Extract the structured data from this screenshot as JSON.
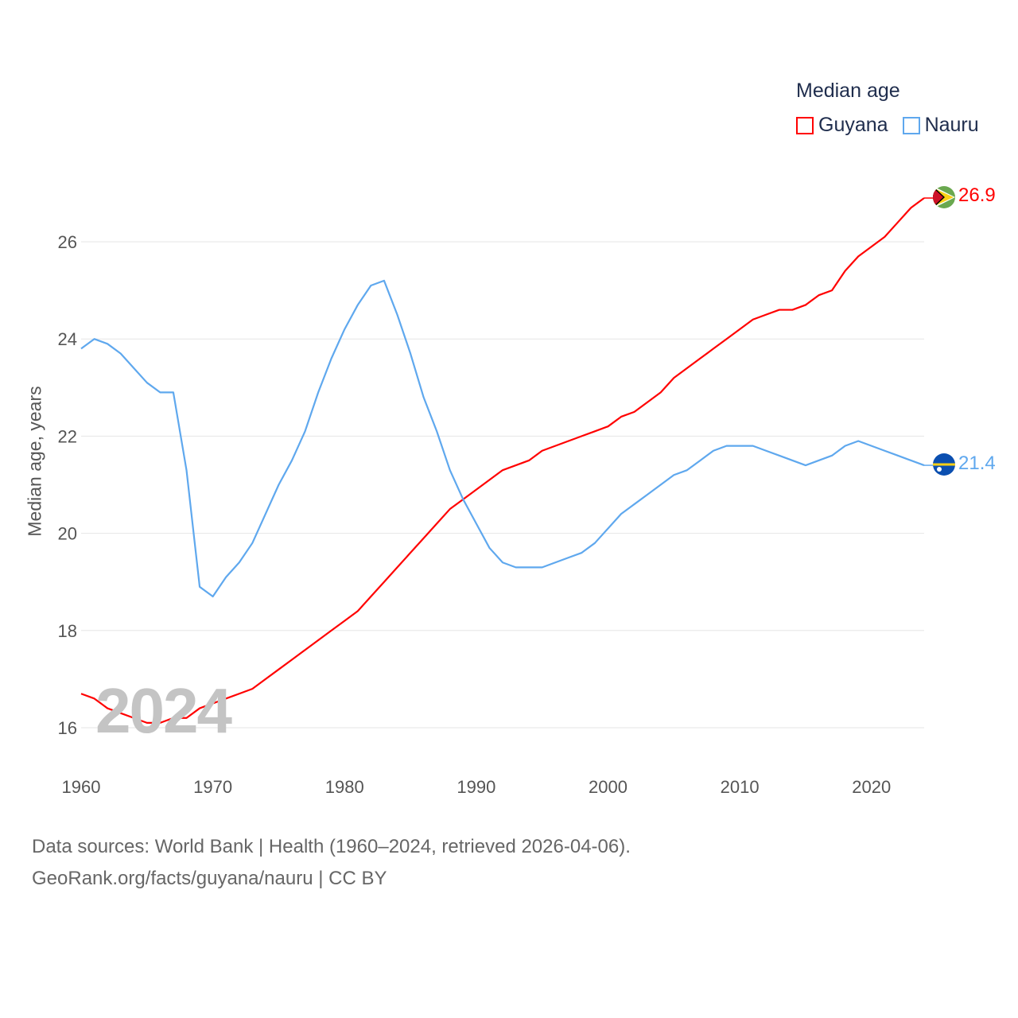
{
  "chart_data": {
    "type": "line",
    "title": "Median age",
    "ylabel": "Median age, years",
    "xlabel": "",
    "xlim": [
      1960,
      2024
    ],
    "ylim": [
      15.2,
      27.5
    ],
    "x_ticks": [
      1960,
      1970,
      1980,
      1990,
      2000,
      2010,
      2020
    ],
    "y_ticks": [
      16,
      18,
      20,
      22,
      24,
      26
    ],
    "grid": true,
    "legend_position": "top-right",
    "current_year": "2024",
    "x": [
      1960,
      1961,
      1962,
      1963,
      1964,
      1965,
      1966,
      1967,
      1968,
      1969,
      1970,
      1971,
      1972,
      1973,
      1974,
      1975,
      1976,
      1977,
      1978,
      1979,
      1980,
      1981,
      1982,
      1983,
      1984,
      1985,
      1986,
      1987,
      1988,
      1989,
      1990,
      1991,
      1992,
      1993,
      1994,
      1995,
      1996,
      1997,
      1998,
      1999,
      2000,
      2001,
      2002,
      2003,
      2004,
      2005,
      2006,
      2007,
      2008,
      2009,
      2010,
      2011,
      2012,
      2013,
      2014,
      2015,
      2016,
      2017,
      2018,
      2019,
      2020,
      2021,
      2022,
      2023,
      2024
    ],
    "series": [
      {
        "name": "Guyana",
        "color": "#ff0000",
        "end_label": "26.9",
        "values": [
          16.7,
          16.6,
          16.4,
          16.3,
          16.2,
          16.1,
          16.1,
          16.2,
          16.2,
          16.4,
          16.5,
          16.6,
          16.7,
          16.8,
          17.0,
          17.2,
          17.4,
          17.6,
          17.8,
          18.0,
          18.2,
          18.4,
          18.7,
          19.0,
          19.3,
          19.6,
          19.9,
          20.2,
          20.5,
          20.7,
          20.9,
          21.1,
          21.3,
          21.4,
          21.5,
          21.7,
          21.8,
          21.9,
          22.0,
          22.1,
          22.2,
          22.4,
          22.5,
          22.7,
          22.9,
          23.2,
          23.4,
          23.6,
          23.8,
          24.0,
          24.2,
          24.4,
          24.5,
          24.6,
          24.6,
          24.7,
          24.9,
          25.0,
          25.4,
          25.7,
          25.9,
          26.1,
          26.4,
          26.7,
          26.9
        ]
      },
      {
        "name": "Nauru",
        "color": "#5fa8ee",
        "end_label": "21.4",
        "values": [
          23.8,
          24.0,
          23.9,
          23.7,
          23.4,
          23.1,
          22.9,
          22.9,
          21.3,
          18.9,
          18.7,
          19.1,
          19.4,
          19.8,
          20.4,
          21.0,
          21.5,
          22.1,
          22.9,
          23.6,
          24.2,
          24.7,
          25.1,
          25.2,
          24.5,
          23.7,
          22.8,
          22.1,
          21.3,
          20.7,
          20.2,
          19.7,
          19.4,
          19.3,
          19.3,
          19.3,
          19.4,
          19.5,
          19.6,
          19.8,
          20.1,
          20.4,
          20.6,
          20.8,
          21.0,
          21.2,
          21.3,
          21.5,
          21.7,
          21.8,
          21.8,
          21.8,
          21.7,
          21.6,
          21.5,
          21.4,
          21.5,
          21.6,
          21.8,
          21.9,
          21.8,
          21.7,
          21.6,
          21.5,
          21.4
        ]
      }
    ]
  },
  "source": {
    "line1": "Data sources: World Bank | Health (1960–2024, retrieved 2026-04-06).",
    "line2": "GeoRank.org/facts/guyana/nauru | CC BY"
  }
}
